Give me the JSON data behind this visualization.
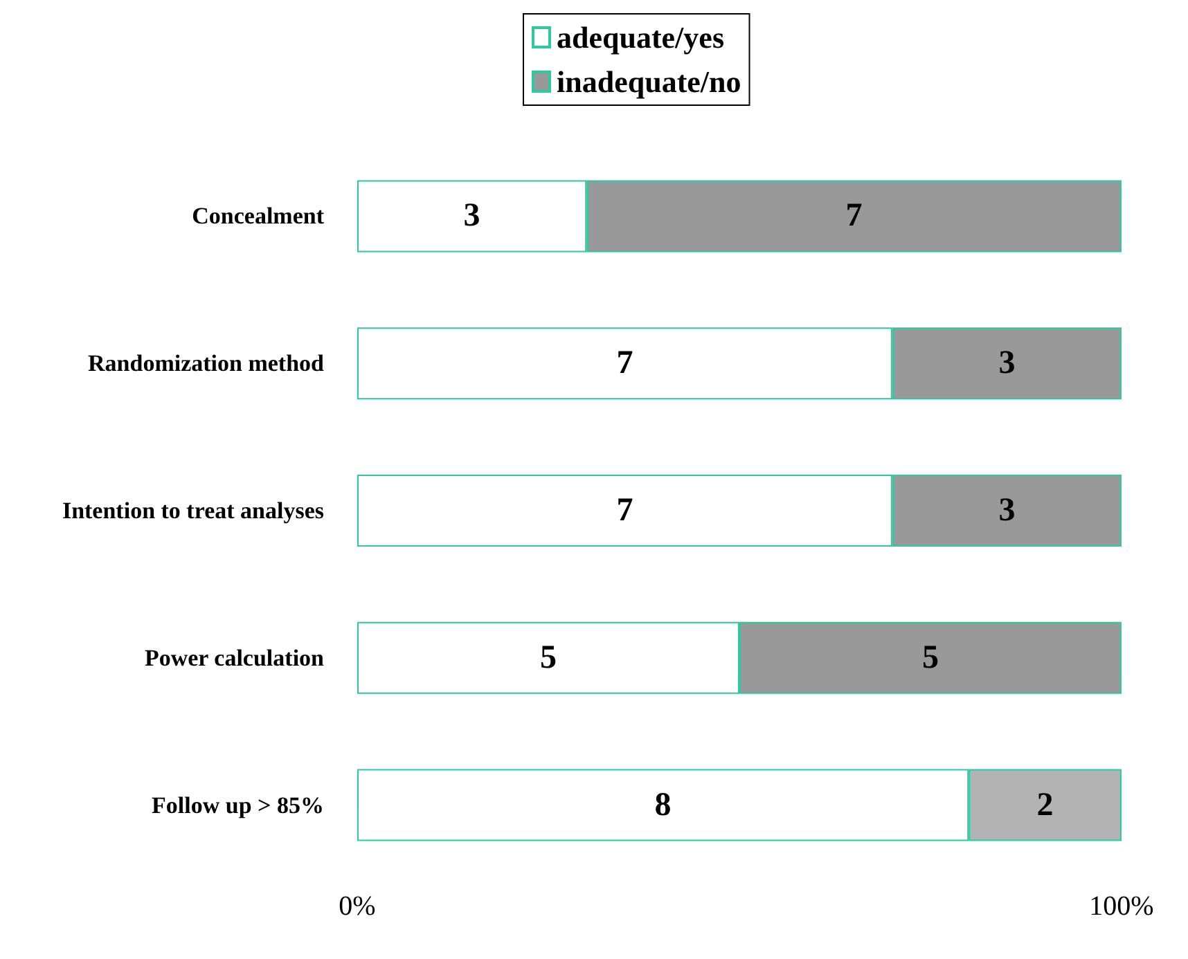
{
  "chart_data": {
    "type": "bar",
    "orientation": "horizontal",
    "stacked": true,
    "categories": [
      "Concealment",
      "Randomization method",
      "Intention to treat analyses",
      "Power calculation",
      "Follow up > 85%"
    ],
    "series": [
      {
        "name": "adequate/yes",
        "color": "#ffffff",
        "values": [
          3,
          7,
          7,
          5,
          8
        ]
      },
      {
        "name": "inadequate/no",
        "color": "#999999",
        "colors": [
          "#999999",
          "#999999",
          "#999999",
          "#999999",
          "#b3b3b3"
        ],
        "values": [
          7,
          3,
          3,
          5,
          2
        ]
      }
    ],
    "xlim": [
      0,
      10
    ],
    "annotations": [
      "0%",
      "100%"
    ],
    "data_labels": true,
    "legend": "top"
  }
}
